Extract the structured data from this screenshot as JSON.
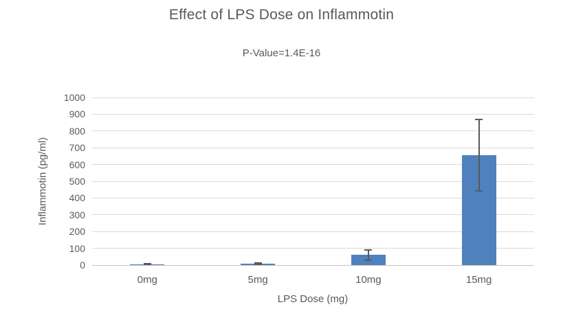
{
  "chart_data": {
    "type": "bar",
    "title": "Effect of LPS Dose on Inflammotin",
    "subtitle": "P-Value=1.4E-16",
    "xlabel": "LPS Dose (mg)",
    "ylabel": "Inflammotin (pg/ml)",
    "categories": [
      "0mg",
      "5mg",
      "10mg",
      "15mg"
    ],
    "values": [
      6,
      10,
      60,
      655
    ],
    "error_bars": [
      2,
      4,
      30,
      212
    ],
    "ylim": [
      0,
      1000
    ],
    "ytick_step": 100,
    "ytick_labels": [
      "0",
      "100",
      "200",
      "300",
      "400",
      "500",
      "600",
      "700",
      "800",
      "900",
      "1000"
    ],
    "grid": true,
    "legend_position": "none",
    "bar_color": "#4f81bd",
    "error_bar_color": "#595959",
    "gridline_color": "#d9d9d9",
    "axis_line_color": "#c3c3c3",
    "text_color": "#595959",
    "background_color": "#ffffff"
  }
}
